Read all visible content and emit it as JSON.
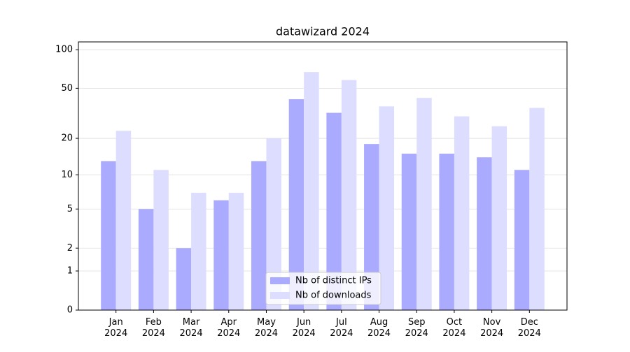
{
  "chart_data": {
    "type": "bar",
    "title": "datawizard 2024",
    "categories": [
      "Jan 2024",
      "Feb 2024",
      "Mar 2024",
      "Apr 2024",
      "May 2024",
      "Jun 2024",
      "Jul 2024",
      "Aug 2024",
      "Sep 2024",
      "Oct 2024",
      "Nov 2024",
      "Dec 2024"
    ],
    "series": [
      {
        "name": "Nb of distinct IPs",
        "color": "#aaaaff",
        "values": [
          13,
          5,
          2,
          6,
          13,
          41,
          32,
          18,
          15,
          15,
          14,
          11
        ]
      },
      {
        "name": "Nb of downloads",
        "color": "#ddddff",
        "values": [
          23,
          11,
          7,
          7,
          20,
          67,
          58,
          36,
          42,
          30,
          25,
          35
        ]
      }
    ],
    "yscale": "log1p",
    "ylim": [
      0,
      115
    ],
    "yticks": [
      0,
      1,
      2,
      5,
      10,
      20,
      50,
      100
    ],
    "grid": true,
    "legend": "lower center"
  }
}
